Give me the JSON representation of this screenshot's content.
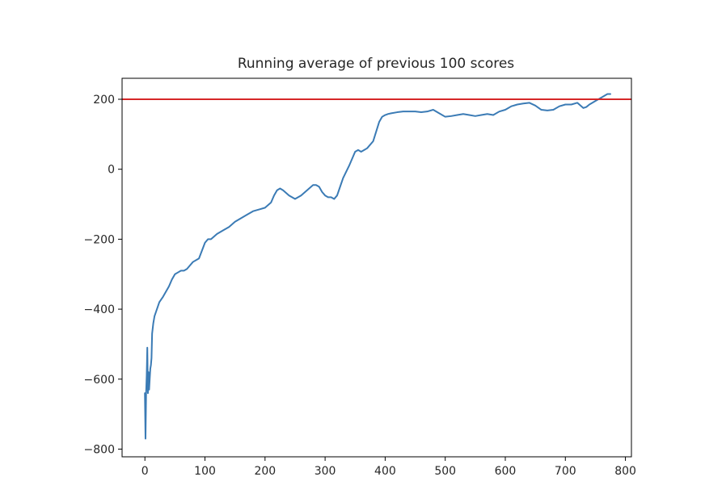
{
  "chart_data": {
    "type": "line",
    "title": "Running average of previous 100 scores",
    "xlabel": "",
    "ylabel": "",
    "xlim": [
      -38,
      810
    ],
    "ylim": [
      -822,
      260
    ],
    "x_ticks": [
      0,
      100,
      200,
      300,
      400,
      500,
      600,
      700,
      800
    ],
    "x_tick_labels": [
      "0",
      "100",
      "200",
      "300",
      "400",
      "500",
      "600",
      "700",
      "800"
    ],
    "y_ticks": [
      200,
      0,
      -200,
      -400,
      -600,
      -800
    ],
    "y_tick_labels": [
      "200",
      "0",
      "−200",
      "−400",
      "−600",
      "−800"
    ],
    "grid": false,
    "legend": "none",
    "threshold": {
      "value": 200,
      "color": "#d62728"
    },
    "series": [
      {
        "color": "#3b7bb5",
        "x": [
          0,
          1,
          2,
          3,
          4,
          5,
          6,
          7,
          8,
          9,
          10,
          11,
          12,
          14,
          16,
          18,
          20,
          24,
          28,
          30,
          35,
          40,
          45,
          50,
          55,
          60,
          65,
          70,
          75,
          80,
          90,
          100,
          105,
          110,
          120,
          130,
          140,
          150,
          160,
          170,
          180,
          190,
          200,
          210,
          215,
          220,
          225,
          230,
          240,
          250,
          255,
          260,
          270,
          280,
          285,
          290,
          295,
          300,
          305,
          310,
          315,
          320,
          325,
          330,
          340,
          350,
          355,
          360,
          365,
          370,
          380,
          390,
          395,
          400,
          405,
          410,
          420,
          430,
          440,
          450,
          460,
          470,
          480,
          490,
          500,
          510,
          520,
          530,
          540,
          550,
          560,
          570,
          580,
          590,
          600,
          605,
          610,
          620,
          630,
          640,
          650,
          660,
          670,
          680,
          690,
          700,
          710,
          720,
          730,
          735,
          740,
          750,
          760,
          770,
          775
        ],
        "y": [
          -640,
          -770,
          -640,
          -590,
          -510,
          -640,
          -580,
          -630,
          -600,
          -570,
          -560,
          -540,
          -470,
          -440,
          -420,
          -410,
          -400,
          -380,
          -370,
          -365,
          -350,
          -335,
          -315,
          -300,
          -295,
          -290,
          -290,
          -285,
          -275,
          -265,
          -255,
          -210,
          -200,
          -200,
          -185,
          -175,
          -165,
          -150,
          -140,
          -130,
          -120,
          -115,
          -110,
          -95,
          -75,
          -60,
          -55,
          -60,
          -75,
          -85,
          -80,
          -75,
          -60,
          -45,
          -45,
          -50,
          -65,
          -75,
          -80,
          -80,
          -85,
          -75,
          -50,
          -25,
          10,
          50,
          55,
          50,
          55,
          60,
          80,
          135,
          150,
          155,
          158,
          160,
          163,
          165,
          165,
          165,
          163,
          165,
          170,
          160,
          150,
          152,
          155,
          158,
          155,
          152,
          155,
          158,
          155,
          165,
          170,
          175,
          180,
          185,
          188,
          190,
          182,
          170,
          168,
          170,
          180,
          185,
          185,
          190,
          175,
          178,
          185,
          195,
          205,
          215,
          215
        ]
      }
    ]
  }
}
